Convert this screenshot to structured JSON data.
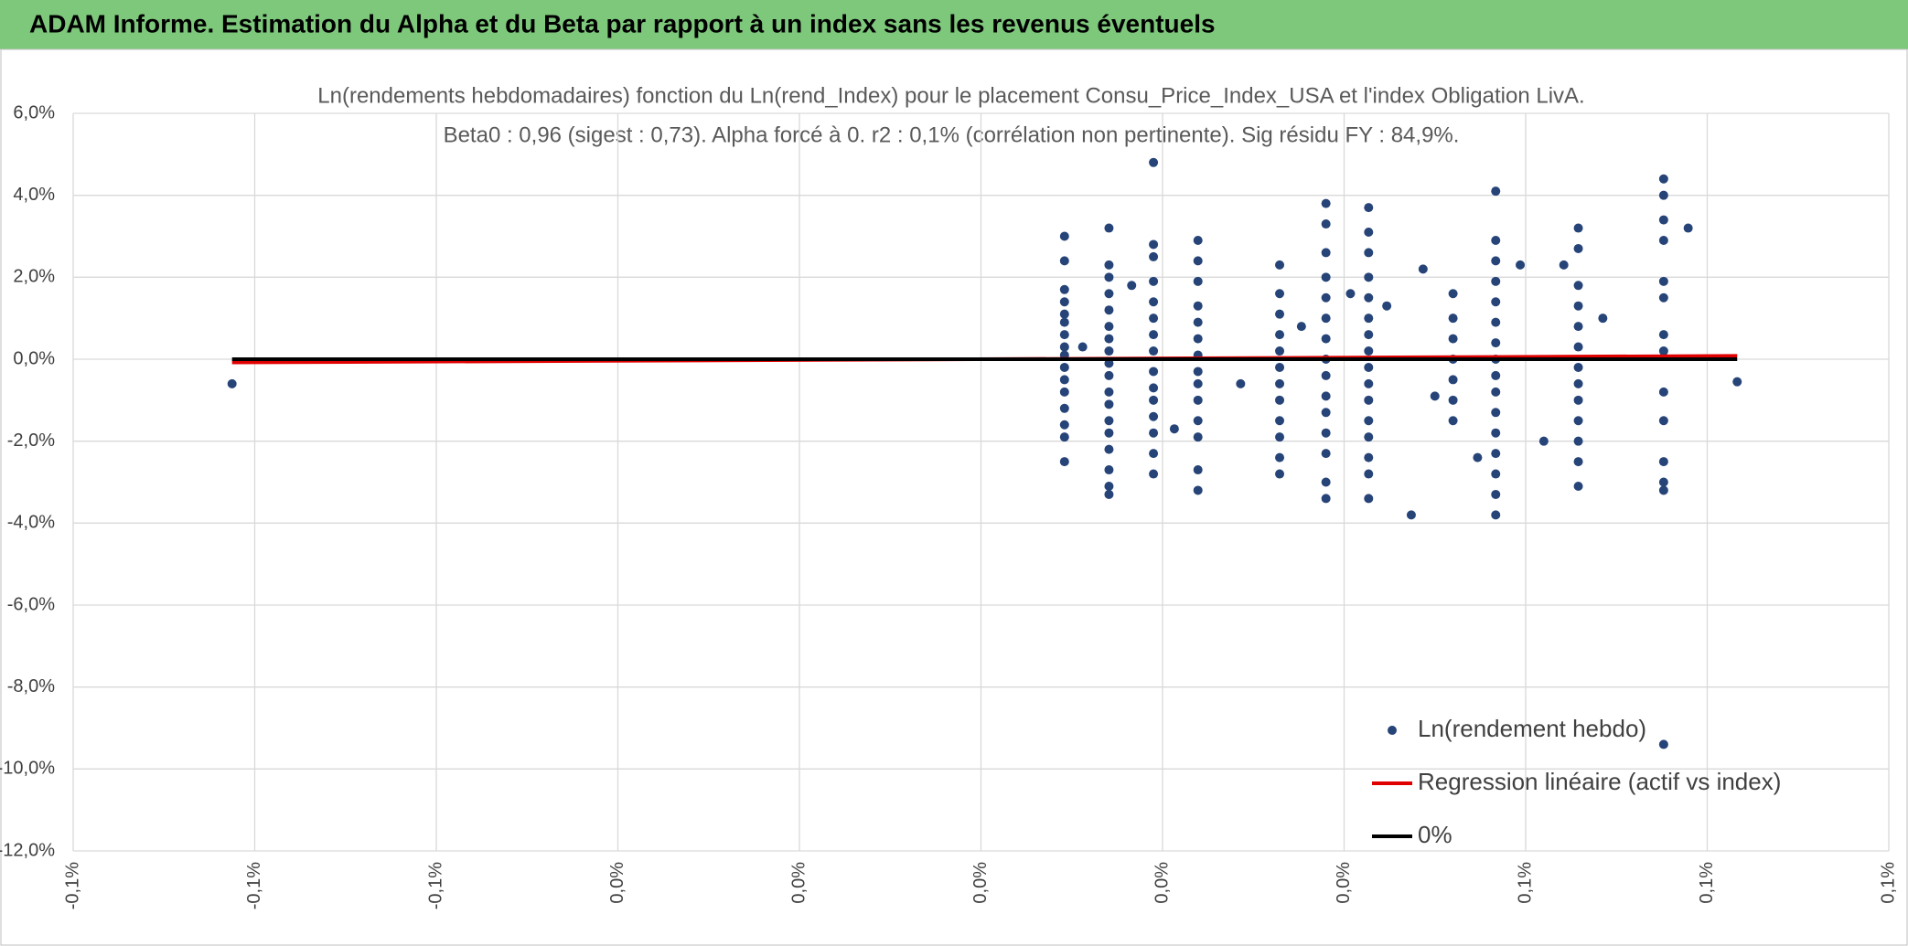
{
  "header": {
    "title": "ADAM Informe. Estimation du Alpha et du Beta par rapport à un index sans les revenus éventuels"
  },
  "chart_data": {
    "type": "scatter",
    "title": "Ln(rendements hebdomadaires) fonction du Ln(rend_Index) pour le placement Consu_Price_Index_USA et l'index Obligation LivA.",
    "subtitle": "Beta0 : 0,96 (sigest : 0,73). Alpha forcé à 0. r2 : 0,1% (corrélation non pertinente). Sig résidu FY : 84,9%.",
    "xlim": [
      -0.1,
      0.1
    ],
    "xticks": [
      {
        "value": -0.1,
        "label": "-0,1%"
      },
      {
        "value": -0.08,
        "label": "-0,1%"
      },
      {
        "value": -0.06,
        "label": "-0,1%"
      },
      {
        "value": -0.04,
        "label": "0,0%"
      },
      {
        "value": -0.02,
        "label": "0,0%"
      },
      {
        "value": 0,
        "label": "0,0%"
      },
      {
        "value": 0.02,
        "label": "0,0%"
      },
      {
        "value": 0.04,
        "label": "0,0%"
      },
      {
        "value": 0.06,
        "label": "0,1%"
      },
      {
        "value": 0.08,
        "label": "0,1%"
      },
      {
        "value": 0.1,
        "label": "0,1%"
      }
    ],
    "ylim": [
      -12,
      6
    ],
    "yticks": [
      {
        "value": 6,
        "label": "6,0%"
      },
      {
        "value": 4,
        "label": "4,0%"
      },
      {
        "value": 2,
        "label": "2,0%"
      },
      {
        "value": 0,
        "label": "0,0%"
      },
      {
        "value": -2,
        "label": "-2,0%"
      },
      {
        "value": -4,
        "label": "-4,0%"
      },
      {
        "value": -6,
        "label": "-6,0%"
      },
      {
        "value": -8,
        "label": "-8,0%"
      },
      {
        "value": -10,
        "label": "-10,0%"
      },
      {
        "value": -12,
        "label": "-12,0%"
      }
    ],
    "grid": true,
    "legend": "bottom-right",
    "series": [
      {
        "name": "Ln(rendement hebdo)",
        "color": "#264478",
        "style": "marker",
        "x": [
          0.0092,
          0.0092,
          0.0092,
          0.0092,
          0.0092,
          0.0092,
          0.0092,
          0.0092,
          0.0092,
          0.0092,
          0.0092,
          0.0092,
          0.0092,
          0.0092,
          0.0092,
          0.0092,
          0.0141,
          0.0141,
          0.0141,
          0.0141,
          0.0141,
          0.0141,
          0.0141,
          0.0141,
          0.0141,
          0.0141,
          0.0141,
          0.0141,
          0.0141,
          0.0141,
          0.0141,
          0.0141,
          0.0141,
          0.0141,
          0.019,
          0.019,
          0.019,
          0.019,
          0.019,
          0.019,
          0.019,
          0.019,
          0.019,
          0.019,
          0.019,
          0.019,
          0.019,
          0.019,
          0.019,
          0.0239,
          0.0239,
          0.0239,
          0.0239,
          0.0239,
          0.0239,
          0.0239,
          0.0239,
          0.0239,
          0.0239,
          0.0239,
          0.0239,
          0.0239,
          0.0239,
          0.0329,
          0.0329,
          0.0329,
          0.0329,
          0.0329,
          0.0329,
          0.0329,
          0.0329,
          0.0329,
          0.0329,
          0.0329,
          0.0329,
          0.038,
          0.038,
          0.038,
          0.038,
          0.038,
          0.038,
          0.038,
          0.038,
          0.038,
          0.038,
          0.038,
          0.038,
          0.038,
          0.038,
          0.038,
          0.0427,
          0.0427,
          0.0427,
          0.0427,
          0.0427,
          0.0427,
          0.0427,
          0.0427,
          0.0427,
          0.0427,
          0.0427,
          0.0427,
          0.0427,
          0.0427,
          0.0427,
          0.0427,
          0.052,
          0.052,
          0.052,
          0.052,
          0.052,
          0.052,
          0.052,
          0.0567,
          0.0567,
          0.0567,
          0.0567,
          0.0567,
          0.0567,
          0.0567,
          0.0567,
          0.0567,
          0.0567,
          0.0567,
          0.0567,
          0.0567,
          0.0567,
          0.0567,
          0.0567,
          0.0658,
          0.0658,
          0.0658,
          0.0658,
          0.0658,
          0.0658,
          0.0658,
          0.0658,
          0.0658,
          0.0658,
          0.0658,
          0.0658,
          0.0658,
          0.0752,
          0.0752,
          0.0752,
          0.0752,
          0.0752,
          0.0752,
          0.0752,
          0.0752,
          0.0752,
          0.0752,
          0.0752,
          0.0752,
          0.0752,
          0.0752,
          0.0112,
          0.0166,
          0.0213,
          0.0286,
          0.0353,
          0.0407,
          0.0474,
          0.0487,
          0.0547,
          0.0594,
          0.062,
          0.0685,
          0.0642,
          0.0447,
          0.05,
          -0.0825,
          0.0833,
          0.0779
        ],
        "values": [
          3.0,
          2.4,
          1.7,
          1.4,
          1.1,
          0.9,
          0.6,
          0.3,
          0.1,
          -0.2,
          -0.5,
          -0.8,
          -1.2,
          -1.6,
          -1.9,
          -2.5,
          3.2,
          2.3,
          2.0,
          1.6,
          1.2,
          0.8,
          0.5,
          0.2,
          -0.1,
          -0.4,
          -0.8,
          -1.1,
          -1.5,
          -1.8,
          -2.2,
          -2.7,
          -3.1,
          -3.3,
          4.8,
          2.8,
          2.5,
          1.9,
          1.4,
          1.0,
          0.6,
          0.2,
          -0.3,
          -0.7,
          -1.0,
          -1.4,
          -1.8,
          -2.3,
          -2.8,
          2.9,
          2.4,
          1.9,
          1.3,
          0.9,
          0.5,
          0.1,
          -0.3,
          -0.6,
          -1.0,
          -1.5,
          -1.9,
          -2.7,
          -3.2,
          2.3,
          1.6,
          1.1,
          0.6,
          0.2,
          -0.2,
          -0.6,
          -1.0,
          -1.5,
          -1.9,
          -2.4,
          -2.8,
          3.8,
          3.3,
          2.6,
          2.0,
          1.5,
          1.0,
          0.5,
          0.0,
          -0.4,
          -0.9,
          -1.3,
          -1.8,
          -2.3,
          -3.0,
          -3.4,
          3.7,
          3.1,
          2.6,
          2.0,
          1.5,
          1.0,
          0.6,
          0.2,
          -0.2,
          -0.6,
          -1.0,
          -1.5,
          -1.9,
          -2.4,
          -2.8,
          -3.4,
          1.6,
          1.0,
          0.5,
          0.0,
          -0.5,
          -1.0,
          -1.5,
          4.1,
          2.9,
          2.4,
          1.9,
          1.4,
          0.9,
          0.4,
          0.0,
          -0.4,
          -0.8,
          -1.3,
          -1.8,
          -2.3,
          -2.8,
          -3.3,
          -3.8,
          3.2,
          2.7,
          1.8,
          1.3,
          0.8,
          0.3,
          -0.2,
          -0.6,
          -1.0,
          -1.5,
          -2.0,
          -2.5,
          -3.1,
          4.4,
          4.0,
          3.4,
          2.9,
          1.9,
          1.5,
          0.6,
          0.2,
          -0.8,
          -1.5,
          -2.5,
          -3.0,
          -3.2,
          -9.4,
          0.3,
          1.8,
          -1.7,
          -0.6,
          0.8,
          1.6,
          -3.8,
          2.2,
          -2.4,
          2.3,
          -2.0,
          1.0,
          2.3,
          1.3,
          -0.9,
          -0.6,
          -0.55,
          3.2
        ]
      },
      {
        "name": "Regression linéaire (actif vs index)",
        "color": "#e00000",
        "style": "line",
        "x": [
          -0.0825,
          0.0833
        ],
        "values": [
          -0.079,
          0.08
        ]
      },
      {
        "name": "0%",
        "color": "#000000",
        "style": "line",
        "x": [
          -0.0825,
          0.0833
        ],
        "values": [
          0,
          0
        ]
      }
    ]
  }
}
